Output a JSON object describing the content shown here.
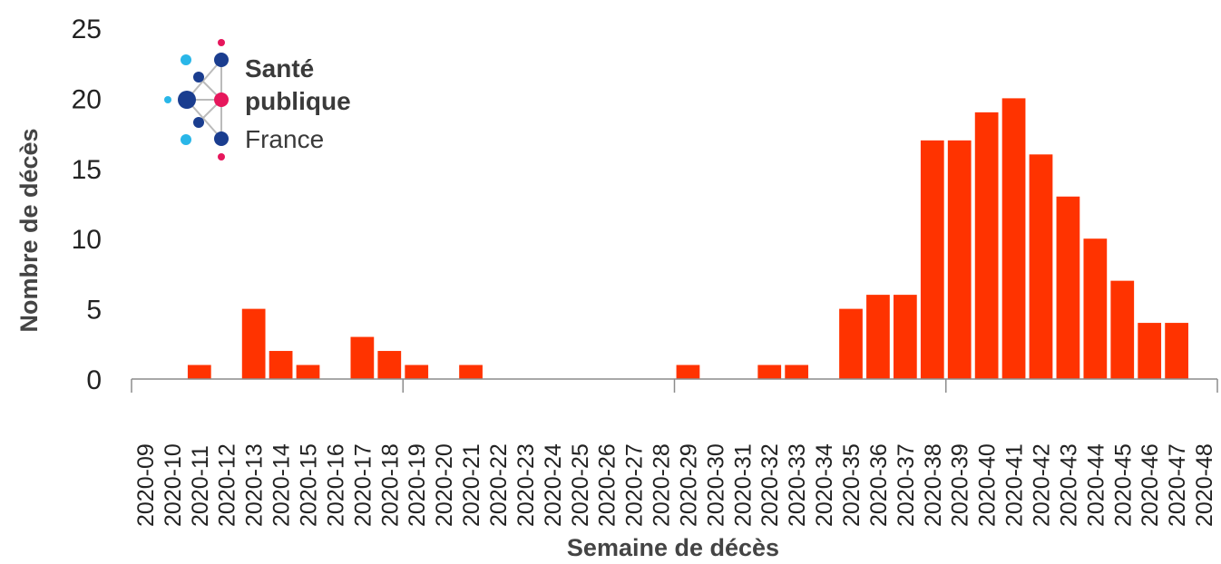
{
  "chart_data": {
    "type": "bar",
    "ylabel": "Nombre de décès",
    "xlabel": "Semaine de décès",
    "ylim": [
      0,
      25
    ],
    "yticks": [
      0,
      5,
      10,
      15,
      20,
      25
    ],
    "grid": false,
    "bar_color": "#ff3300",
    "categories": [
      "2020-09",
      "2020-10",
      "2020-11",
      "2020-12",
      "2020-13",
      "2020-14",
      "2020-15",
      "2020-16",
      "2020-17",
      "2020-18",
      "2020-19",
      "2020-20",
      "2020-21",
      "2020-22",
      "2020-23",
      "2020-24",
      "2020-25",
      "2020-26",
      "2020-27",
      "2020-28",
      "2020-29",
      "2020-30",
      "2020-31",
      "2020-32",
      "2020-33",
      "2020-34",
      "2020-35",
      "2020-36",
      "2020-37",
      "2020-38",
      "2020-39",
      "2020-40",
      "2020-41",
      "2020-42",
      "2020-43",
      "2020-44",
      "2020-45",
      "2020-46",
      "2020-47",
      "2020-48"
    ],
    "tick_labels": [
      "2020-09",
      "2020-10",
      "2020-11",
      "2020-12",
      "2020-13",
      "2020-14",
      "2020-15",
      "2020-16",
      "2020-17",
      "2020-18",
      "2020-19",
      "2020-20",
      "2020-21",
      "2020-22",
      "2020-23",
      "2020-24",
      "2020-25",
      "2020-26",
      "2020-27",
      "2020-28",
      "2020-29",
      "2020-30",
      "2020-31",
      "2020-32",
      "2020-33",
      "2020-34",
      "2020-35",
      "2020-36",
      "2020-37",
      "2020-38",
      "2020-39",
      "2020-40",
      "2020-41",
      "2020-42",
      "2020-43",
      "2020-44",
      "2020-45",
      "2020-46",
      "2020-47",
      "2020-48"
    ],
    "bars": [
      {
        "category": "2020-11",
        "value": 1
      },
      {
        "category": "2020-13",
        "value": 5
      },
      {
        "category": "2020-14",
        "value": 2
      },
      {
        "category": "2020-15",
        "value": 1
      },
      {
        "category": "2020-17",
        "value": 3
      },
      {
        "category": "2020-18",
        "value": 2
      },
      {
        "category": "2020-19",
        "value": 1
      },
      {
        "category": "2020-21",
        "value": 1
      },
      {
        "category": "2020-29",
        "value": 1
      },
      {
        "category": "2020-32",
        "value": 1
      },
      {
        "category": "2020-33",
        "value": 1
      },
      {
        "category": "2020-35",
        "value": 5
      },
      {
        "category": "2020-36",
        "value": 6
      },
      {
        "category": "2020-37",
        "value": 6
      },
      {
        "category": "2020-38",
        "value": 17
      },
      {
        "category": "2020-39",
        "value": 17
      },
      {
        "category": "2020-40",
        "value": 19
      },
      {
        "category": "2020-41",
        "value": 20
      },
      {
        "category": "2020-42",
        "value": 16
      },
      {
        "category": "2020-43",
        "value": 13
      },
      {
        "category": "2020-44",
        "value": 10
      },
      {
        "category": "2020-45",
        "value": 7
      },
      {
        "category": "2020-46",
        "value": 4
      },
      {
        "category": "2020-47",
        "value": 4
      }
    ]
  },
  "logo": {
    "line1": "Santé",
    "line2": "publique",
    "line3": "France",
    "colors": {
      "dark_blue": "#1a3d8f",
      "light_blue": "#29b6e8",
      "pink": "#e6175c",
      "text": "#3a3a3a"
    }
  }
}
